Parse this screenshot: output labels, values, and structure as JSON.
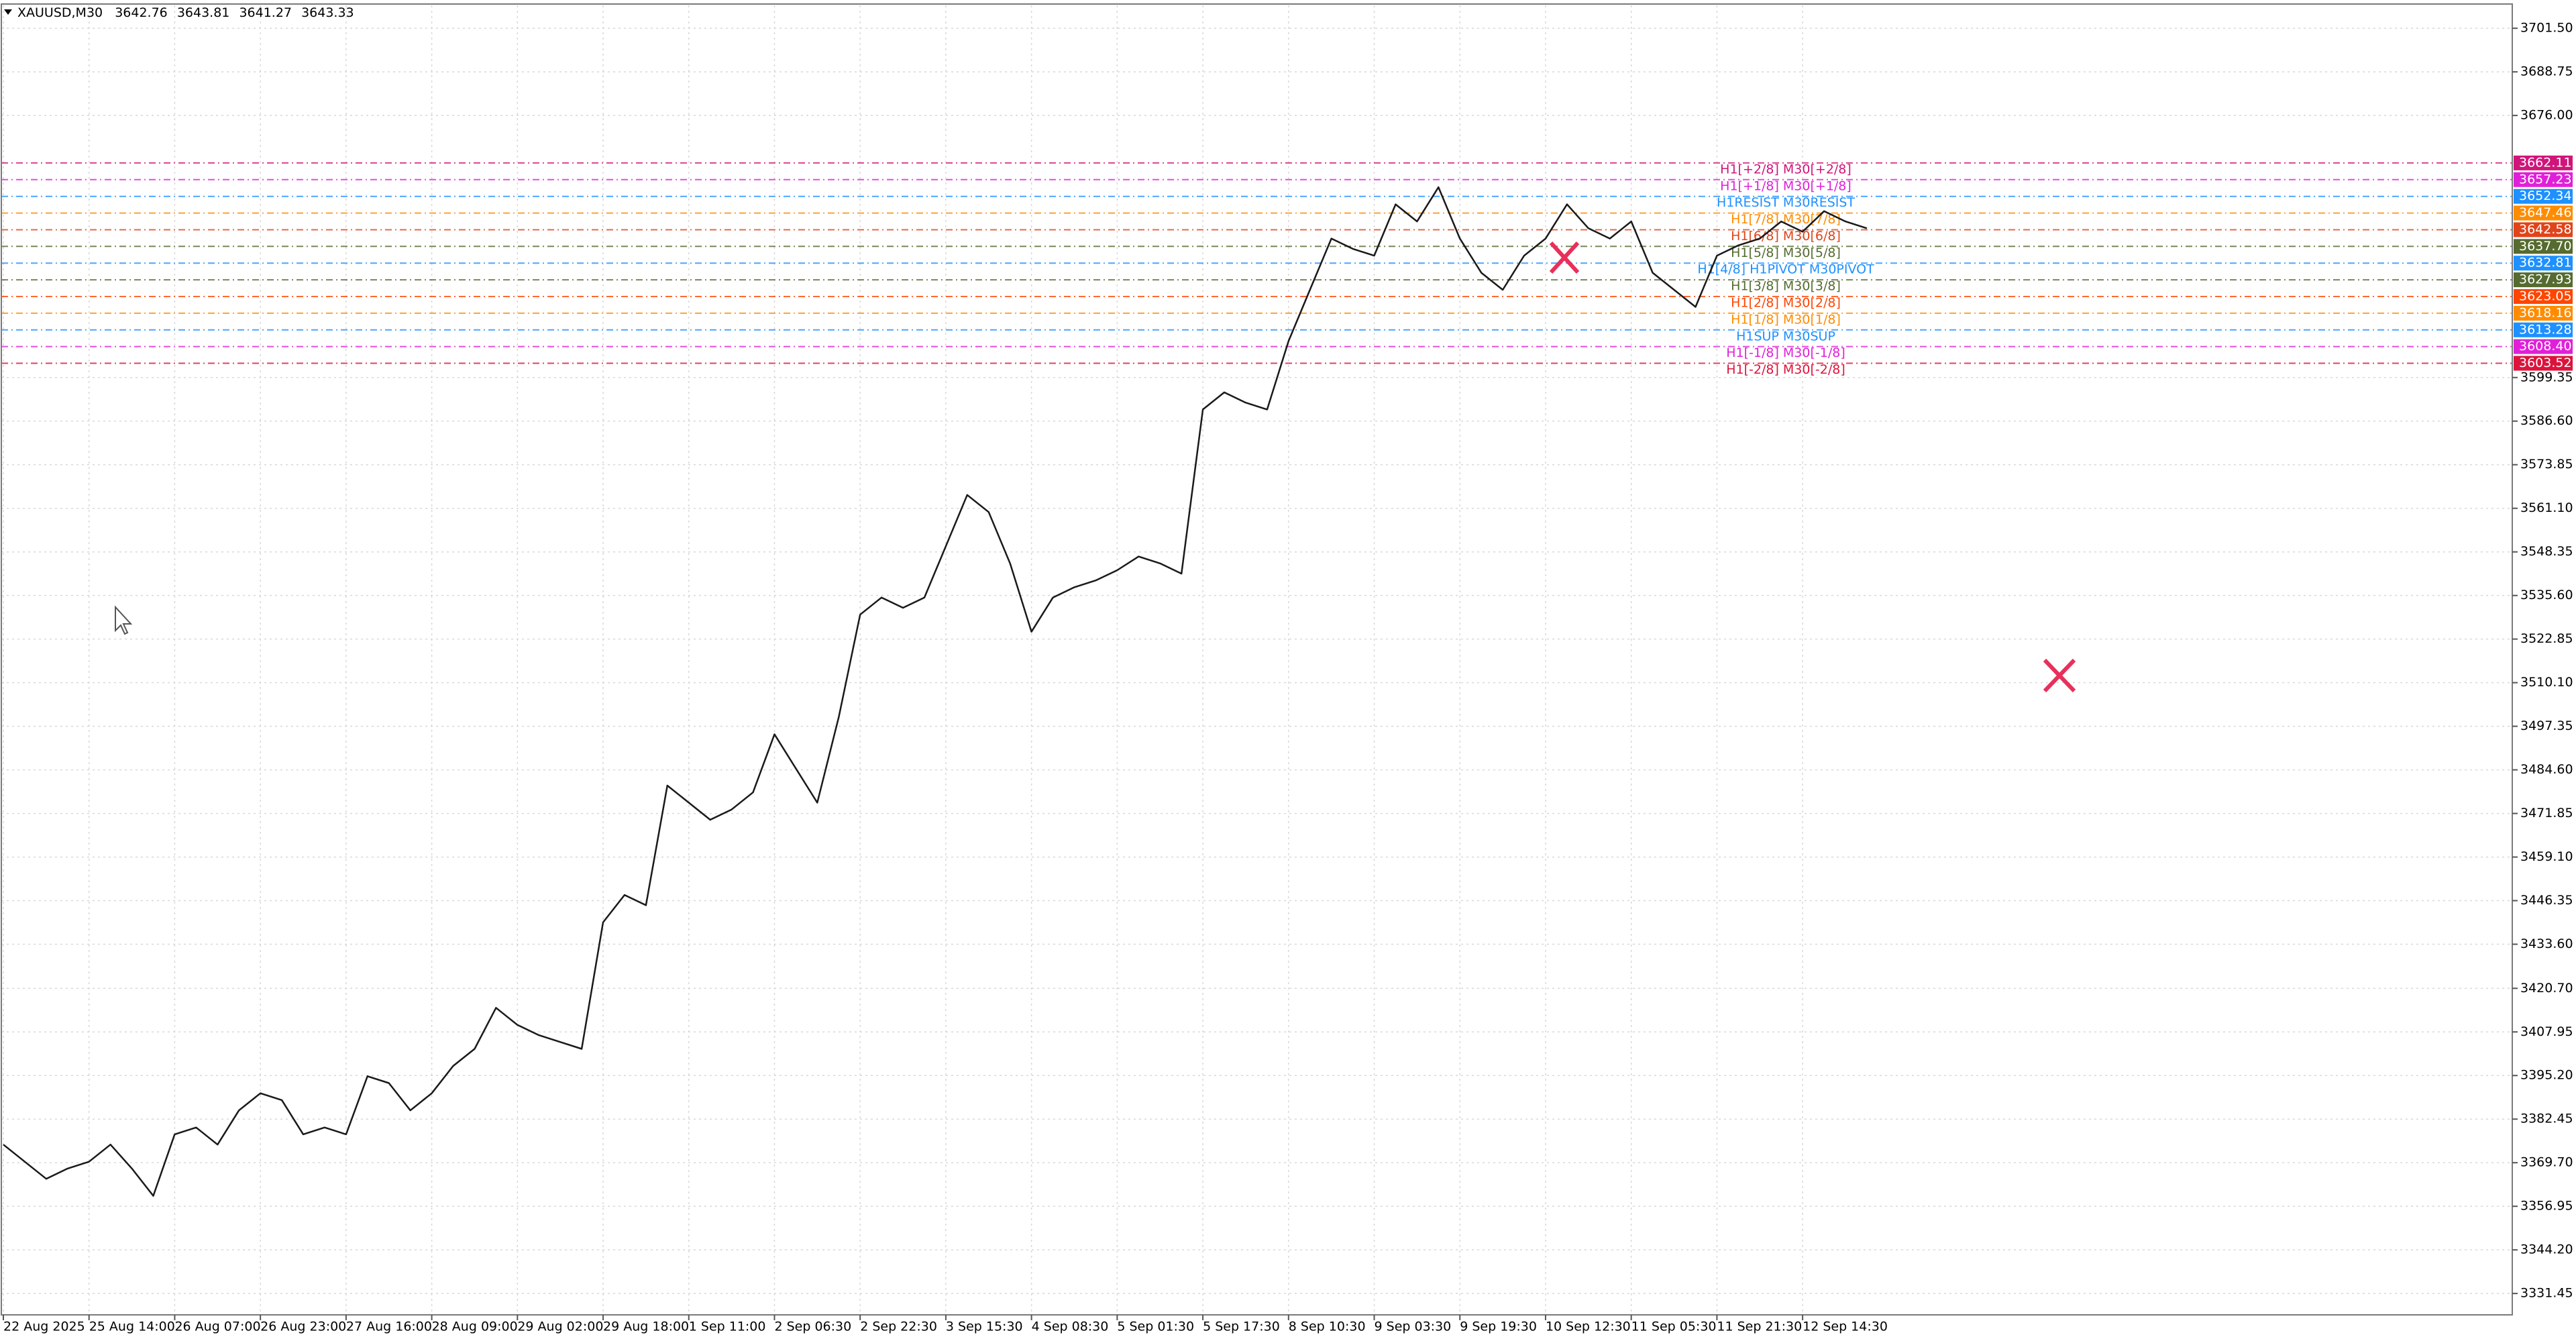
{
  "chart_data": {
    "type": "line",
    "symbol": "XAUUSD,M30",
    "ohlc": [
      3642.76,
      3643.81,
      3641.27,
      3643.33
    ],
    "color": "#1a1a1a",
    "grid": true,
    "categories": [
      "22 Aug 2025",
      null,
      null,
      null,
      "25 Aug 14:00",
      null,
      null,
      null,
      "26 Aug 07:00",
      null,
      null,
      null,
      "26 Aug 23:00",
      null,
      null,
      null,
      "27 Aug 16:00",
      null,
      null,
      null,
      "28 Aug 09:00",
      null,
      null,
      null,
      "29 Aug 02:00",
      null,
      null,
      null,
      "29 Aug 18:00",
      null,
      null,
      null,
      "1 Sep 11:00",
      null,
      null,
      null,
      "2 Sep 06:30",
      null,
      null,
      null,
      "2 Sep 22:30",
      null,
      null,
      null,
      "3 Sep 15:30",
      null,
      null,
      null,
      "4 Sep 08:30",
      null,
      null,
      null,
      "5 Sep 01:30",
      null,
      null,
      null,
      "5 Sep 17:30",
      null,
      null,
      null,
      "8 Sep 10:30",
      null,
      null,
      null,
      "9 Sep 03:30",
      null,
      null,
      null,
      "9 Sep 19:30",
      null,
      null,
      null,
      "10 Sep 12:30",
      null,
      null,
      null,
      "11 Sep 05:30",
      null,
      null,
      null,
      "11 Sep 21:30",
      null,
      null,
      null,
      "12 Sep 14:30",
      null,
      null,
      null
    ],
    "values": [
      3375,
      3370,
      3365,
      3368,
      3370,
      3375,
      3368,
      3360,
      3378,
      3380,
      3375,
      3385,
      3390,
      3388,
      3378,
      3380,
      3378,
      3395,
      3393,
      3385,
      3390,
      3398,
      3403,
      3415,
      3410,
      3407,
      3405,
      3403,
      3440,
      3448,
      3445,
      3480,
      3475,
      3470,
      3473,
      3478,
      3495,
      3485,
      3475,
      3500,
      3530,
      3535,
      3532,
      3535,
      3550,
      3565,
      3560,
      3545,
      3525,
      3535,
      3538,
      3540,
      3543,
      3547,
      3545,
      3542,
      3590,
      3595,
      3592,
      3590,
      3610,
      3625,
      3640,
      3637,
      3635,
      3650,
      3645,
      3655,
      3640,
      3630,
      3625,
      3635,
      3640,
      3650,
      3643,
      3640,
      3645,
      3630,
      3625,
      3620,
      3635,
      3638,
      3640,
      3645,
      3642,
      3648,
      3645,
      3643
    ],
    "ylim": [
      3325.2,
      3708.2
    ],
    "yticks": [
      3331.45,
      {
        "value": 3344.2,
        "label": "3344.20"
      },
      3356.95,
      {
        "value": 3369.7,
        "label": "3369.70"
      },
      3382.45,
      {
        "value": 3395.2,
        "label": "3395.20"
      },
      3407.95,
      {
        "value": 3420.7,
        "label": "3420.70"
      },
      {
        "value": 3433.6,
        "label": "3433.60"
      },
      3446.35,
      {
        "value": 3459.1,
        "label": "3459.10"
      },
      3471.85,
      {
        "value": 3484.6,
        "label": "3484.60"
      },
      3497.35,
      {
        "value": 3510.1,
        "label": "3510.10"
      },
      3522.85,
      {
        "value": 3535.6,
        "label": "3535.60"
      },
      3548.35,
      {
        "value": 3561.1,
        "label": "3561.10"
      },
      3573.85,
      {
        "value": 3586.6,
        "label": "3586.60"
      },
      3599.35,
      {
        "value": 3676,
        "label": "3676.00"
      },
      3688.75,
      {
        "value": 3701.5,
        "label": "3701.50"
      }
    ],
    "levels": [
      {
        "name": "H1[+2/8] M30[+2/8]",
        "value": 3662.11,
        "label": "3662.11",
        "color": "#d0157a"
      },
      {
        "name": "H1[+1/8] M30[+1/8]",
        "value": 3657.23,
        "label": "3657.23",
        "color": "#e020d8"
      },
      {
        "name": "H1RESIST M30RESIST",
        "value": 3652.34,
        "label": "3652.34",
        "color": "#1e90ff"
      },
      {
        "name": "H1[7/8] M30[7/8]",
        "value": 3647.46,
        "label": "3647.46",
        "color": "#ff8c00"
      },
      {
        "name": "H1[6/8] M30[6/8]",
        "value": 3642.58,
        "label": "3642.58",
        "color": "#e0441a"
      },
      {
        "name": "H1[5/8] M30[5/8]",
        "value": 3637.7,
        "label": "3637.70",
        "color": "#556b2f"
      },
      {
        "name": "H1[4/8] H1PIVOT M30PIVOT",
        "value": 3632.81,
        "label": "3632.81",
        "color": "#1e90ff"
      },
      {
        "name": "H1[3/8] M30[3/8]",
        "value": 3627.93,
        "label": "3627.93",
        "color": "#556b2f"
      },
      {
        "name": "H1[2/8] M30[2/8]",
        "value": 3623.05,
        "label": "3623.05",
        "color": "#ff4500"
      },
      {
        "name": "H1[1/8] M30[1/8]",
        "value": 3618.16,
        "label": "3618.16",
        "color": "#ff8c00"
      },
      {
        "name": "H1SUP M30SUP",
        "value": 3613.28,
        "label": "3613.28",
        "color": "#1e90ff"
      },
      {
        "name": "H1[-1/8] M30[-1/8]",
        "value": 3608.4,
        "label": "3608.40",
        "color": "#e020d8"
      },
      {
        "name": "H1[-2/8] M30[-2/8]",
        "value": 3603.52,
        "label": "3603.52",
        "color": "#dc143c"
      }
    ]
  }
}
